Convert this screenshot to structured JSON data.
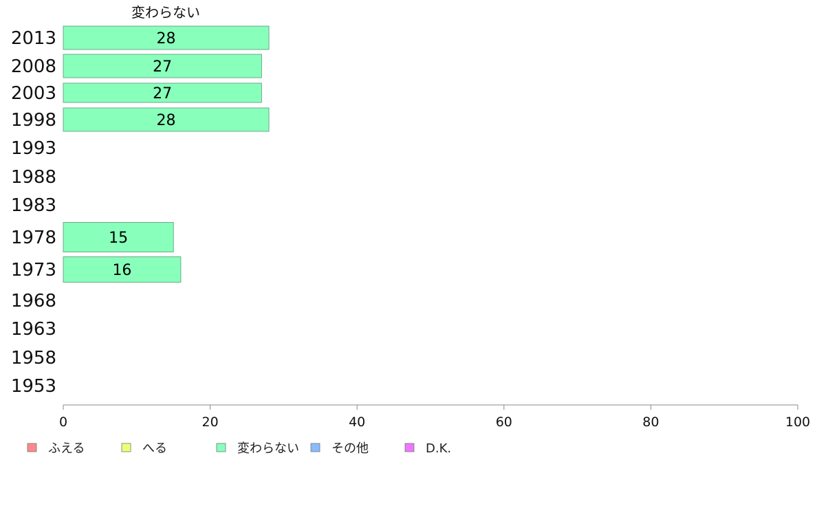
{
  "chart_data": {
    "type": "bar",
    "orientation": "horizontal",
    "series_title": "変わらない",
    "categories": [
      "2013",
      "2008",
      "2003",
      "1998",
      "1993",
      "1988",
      "1983",
      "1978",
      "1973",
      "1968",
      "1963",
      "1958",
      "1953"
    ],
    "series": [
      {
        "name": "変わらない",
        "color": "#88ffbb",
        "values": [
          28,
          27,
          27,
          28,
          null,
          null,
          null,
          15,
          16,
          null,
          null,
          null,
          null
        ]
      }
    ],
    "xlim": [
      0,
      100
    ],
    "xticks": [
      0,
      20,
      40,
      60,
      80,
      100
    ],
    "grid": false,
    "legend_position": "bottom",
    "legend": [
      {
        "label": "ふえる",
        "color": "#ff8888"
      },
      {
        "label": "へる",
        "color": "#eeff77"
      },
      {
        "label": "変わらない",
        "color": "#88ffbb"
      },
      {
        "label": "その他",
        "color": "#88bbff"
      },
      {
        "label": "D.K.",
        "color": "#ee77ff"
      }
    ]
  }
}
